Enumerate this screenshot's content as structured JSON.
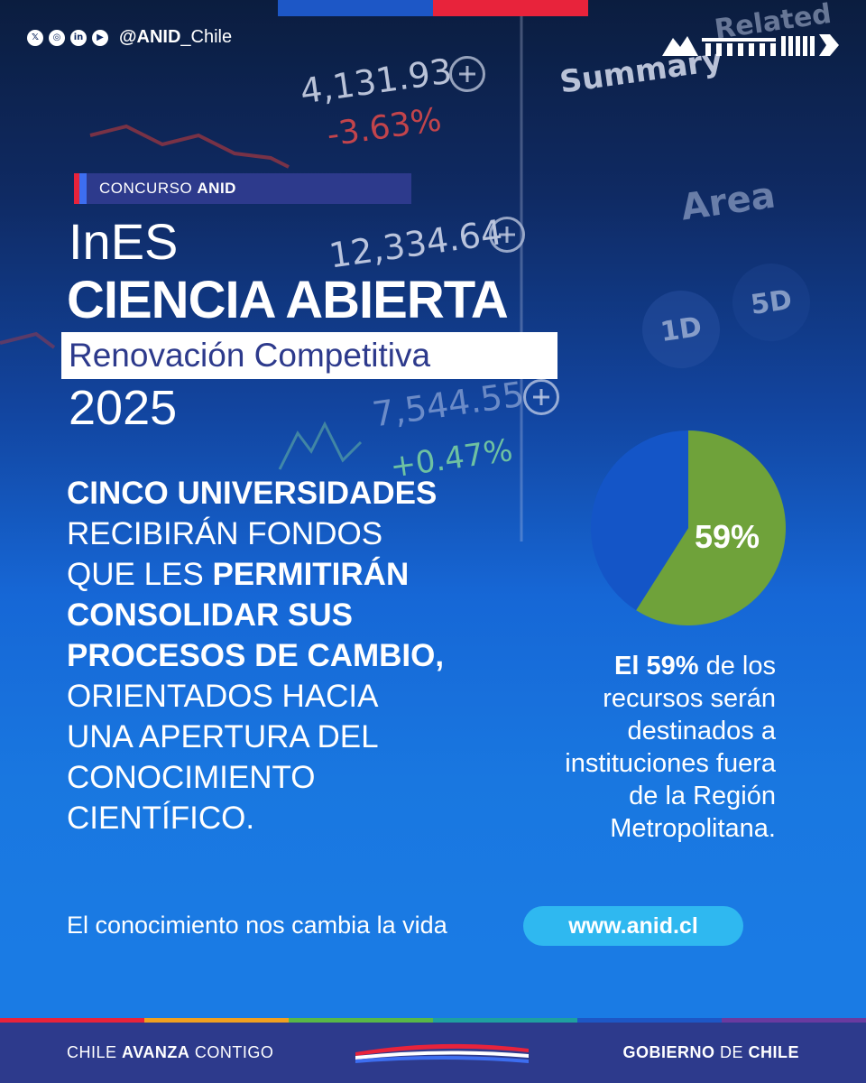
{
  "social": {
    "icons": [
      "x-icon",
      "instagram-icon",
      "linkedin-icon",
      "youtube-icon"
    ],
    "handle_bold": "@ANID",
    "handle_rest": "_Chile"
  },
  "background_ticker": {
    "values": [
      "4,131.93",
      "-3.63%",
      "12,334.64",
      "7,544.55",
      "+0.47%",
      "Summary",
      "Related",
      "Area",
      "1D",
      "5D"
    ]
  },
  "header": {
    "tag_prefix": "CONCURSO",
    "tag_bold": "ANID",
    "title_line1": "InES",
    "title_line2": "CIENCIA ABIERTA",
    "title_line3": "Renovación Competitiva",
    "title_line4": "2025"
  },
  "body": {
    "l1_bold": "CINCO UNIVERSIDADES",
    "l2": "RECIBIRÁN FONDOS",
    "l3_pre": "QUE LES ",
    "l3_bold": "PERMITIRÁN",
    "l4_bold": "CONSOLIDAR SUS",
    "l5_bold": "PROCESOS DE CAMBIO,",
    "l6": "ORIENTADOS HACIA",
    "l7": "UNA APERTURA DEL",
    "l8": "CONOCIMIENTO",
    "l9": "CIENTÍFICO."
  },
  "chart_data": {
    "type": "pie",
    "values": [
      59,
      41
    ],
    "colors": [
      "#6fa23a",
      "#1455c7"
    ],
    "data_label": "59%"
  },
  "pie_caption": {
    "bold": "El 59%",
    "rest1": " de los",
    "line2": "recursos serán",
    "line3": "destinados a",
    "line4": "instituciones fuera",
    "line5": "de la Región",
    "line6": "Metropolitana."
  },
  "footer": {
    "slogan": "El conocimiento nos cambia la vida",
    "url": "www.anid.cl",
    "left_pre": "CHILE ",
    "left_bold": "AVANZA",
    "left_post": " CONTIGO",
    "right_bold1": "GOBIERNO",
    "right_mid": " DE ",
    "right_bold2": "CHILE",
    "rainbow_colors": [
      "#e8233b",
      "#f0a020",
      "#58b847",
      "#1ea0a0",
      "#1d57c6",
      "#6a3aa0"
    ]
  },
  "colors": {
    "accent_navy": "#2d3a8c",
    "accent_red": "#e8233b",
    "accent_cyan": "#2fb8f0",
    "pie_green": "#6fa23a",
    "pie_blue": "#1455c7"
  }
}
